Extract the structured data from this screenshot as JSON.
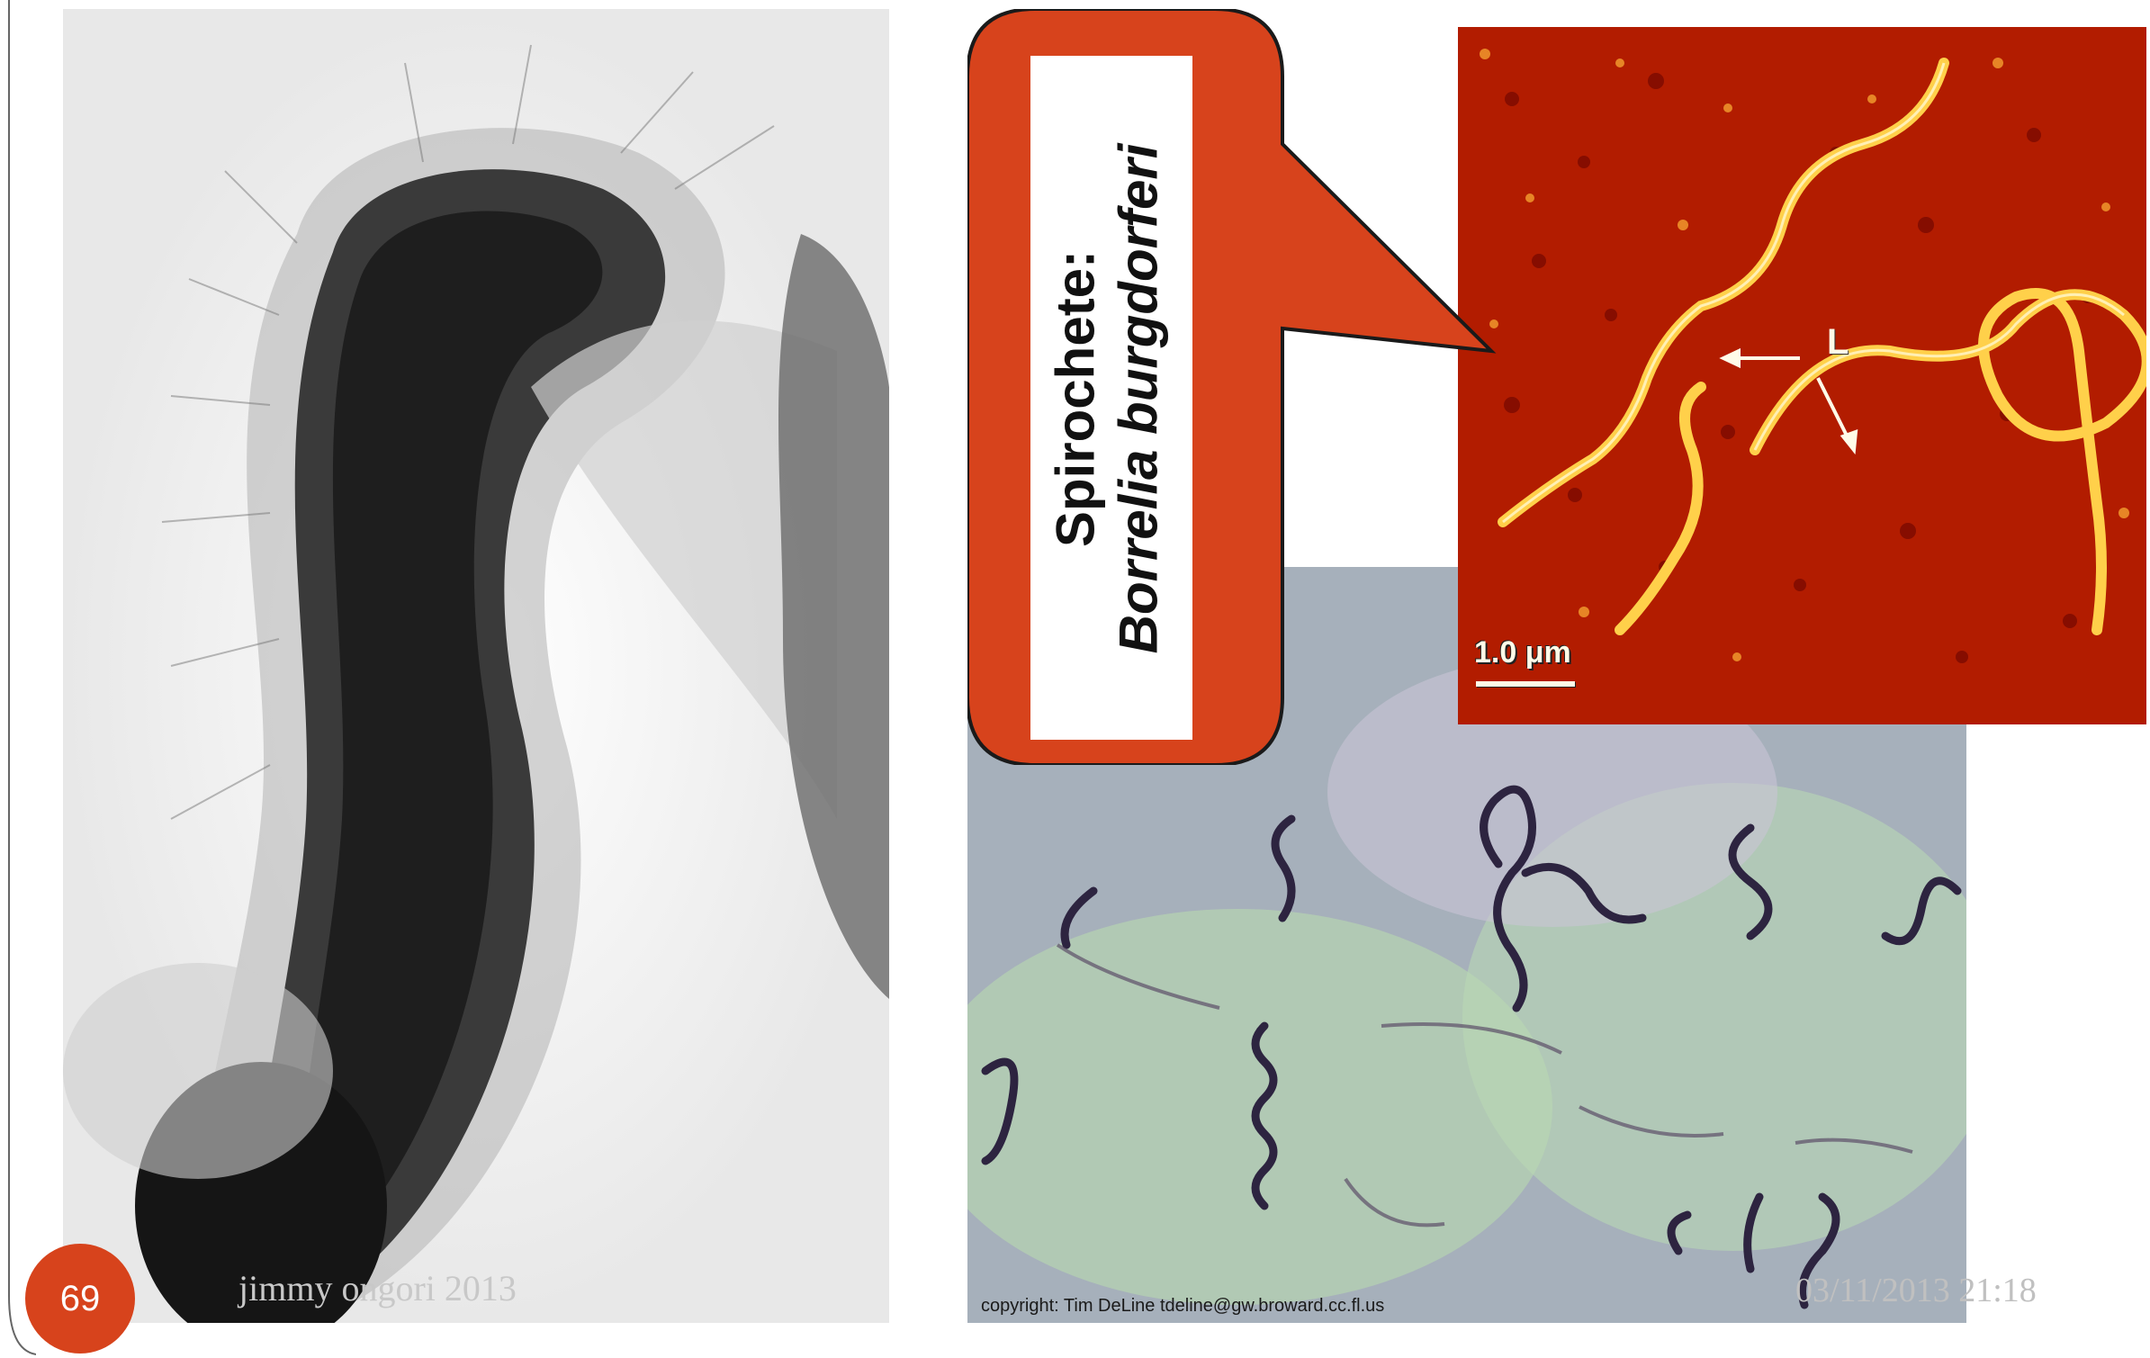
{
  "slide": {
    "page_number": "69",
    "footer_author": "jimmy ongori 2013",
    "footer_date": "03/11/2013 21:18"
  },
  "callout": {
    "line1": "Spirochete:",
    "line2": "Borrelia burgdorferi",
    "fill_color": "#d7431c",
    "border_color": "#1a1a1a"
  },
  "afm_image": {
    "scale_label": "1.0 μm",
    "marker_label": "L"
  },
  "stain_image": {
    "copyright": "copyright: Tim DeLine tdeline@gw.broward.cc.fl.us"
  },
  "icons": {
    "photo_left": "micrograph-ciliated-organism",
    "photo_afm": "micrograph-afm-spirochete",
    "photo_stain": "micrograph-stained-spirochetes"
  }
}
